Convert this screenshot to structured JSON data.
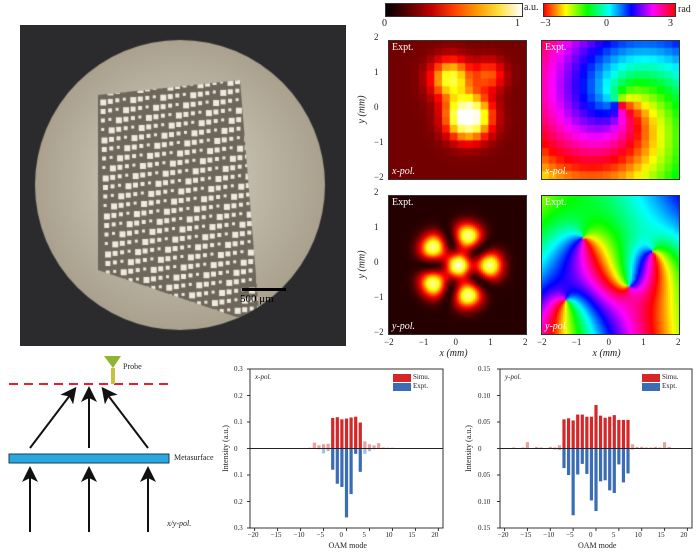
{
  "photo": {
    "scale_bar_label": "500 μm"
  },
  "colorbars": {
    "intensity": {
      "unit": "a.u.",
      "min": "0",
      "max": "1"
    },
    "phase": {
      "unit": "rad",
      "min": "−3",
      "mid": "0",
      "max": "3"
    }
  },
  "maps": {
    "panels": [
      {
        "tag": "Expt.",
        "pol": "x-pol.",
        "kind": "intensity"
      },
      {
        "tag": "Expt.",
        "pol": "x-pol.",
        "kind": "phase"
      },
      {
        "tag": "Expt.",
        "pol": "y-pol.",
        "kind": "intensity"
      },
      {
        "tag": "Expt.",
        "pol": "y-pol.",
        "kind": "phase"
      }
    ],
    "ylabel": "y (mm)",
    "xlabel": "x (mm)",
    "ticks": [
      "−2",
      "−1",
      "0",
      "1",
      "2"
    ]
  },
  "schematic": {
    "probe_label": "Probe",
    "metasurface_label": "Metasurface",
    "input_label": "x/y-pol.",
    "colors": {
      "dashed_line": "#e8202a",
      "metasurface": "#29a8e0",
      "probe": "#8db531"
    }
  },
  "chart_data": [
    {
      "type": "bar",
      "annotation": "x-pol.",
      "xlabel": "OAM mode",
      "ylabel": "Intensity (a.u.)",
      "xlim": [
        -21,
        21
      ],
      "ylim": [
        -0.3,
        0.3
      ],
      "xticks": [
        "−20",
        "−15",
        "−10",
        "−5",
        "0",
        "5",
        "10",
        "15",
        "20"
      ],
      "yticks": [
        "0.3",
        "0.2",
        "0.1",
        "0",
        "0.1",
        "0.2",
        "0.3"
      ],
      "legend_placement": "top-right",
      "x": [
        -20,
        -19,
        -18,
        -17,
        -16,
        -15,
        -14,
        -13,
        -12,
        -11,
        -10,
        -9,
        -8,
        -7,
        -6,
        -5,
        -4,
        -3,
        -2,
        -1,
        0,
        1,
        2,
        3,
        4,
        5,
        6,
        7,
        8,
        9,
        10,
        11,
        12,
        13,
        14,
        15,
        16,
        17,
        18,
        19,
        20
      ],
      "series": [
        {
          "name": "Simu.",
          "color": "#d62728",
          "direction": "up",
          "values": [
            0,
            0,
            0,
            0,
            0.002,
            0,
            0.002,
            0,
            0.002,
            0.002,
            0.002,
            0.002,
            0.003,
            0.022,
            0.012,
            0.016,
            0.018,
            0.115,
            0.118,
            0.11,
            0.113,
            0.117,
            0.12,
            0.098,
            0.027,
            0.016,
            0.012,
            0.02,
            0.004,
            0.003,
            0.003,
            0.002,
            0.002,
            0.002,
            0,
            0.002,
            0.002,
            0,
            0,
            0,
            0
          ]
        },
        {
          "name": "Expt.",
          "color": "#3a6db5",
          "direction": "down",
          "values": [
            0,
            0,
            0,
            0,
            0,
            0,
            0,
            0,
            0,
            0,
            0,
            0,
            0,
            0,
            0.003,
            0.018,
            0.01,
            0.08,
            0.133,
            0.145,
            0.26,
            0.172,
            0.02,
            0.088,
            0.02,
            0.01,
            0.003,
            0,
            0,
            0,
            0,
            0,
            0,
            0,
            0,
            0,
            0,
            0,
            0,
            0,
            0
          ]
        }
      ]
    },
    {
      "type": "bar",
      "annotation": "y-pol.",
      "xlabel": "OAM mode",
      "ylabel": "Intensity (a.u.)",
      "xlim": [
        -21,
        21
      ],
      "ylim": [
        -0.15,
        0.15
      ],
      "xticks": [
        "−20",
        "−15",
        "−10",
        "−5",
        "0",
        "5",
        "10",
        "15",
        "20"
      ],
      "yticks": [
        "0.15",
        "0.10",
        "0.05",
        "0",
        "0.05",
        "0.10",
        "0.15"
      ],
      "legend_placement": "top-right",
      "x": [
        -20,
        -19,
        -18,
        -17,
        -16,
        -15,
        -14,
        -13,
        -12,
        -11,
        -10,
        -9,
        -8,
        -7,
        -6,
        -5,
        -4,
        -3,
        -2,
        -1,
        0,
        1,
        2,
        3,
        4,
        5,
        6,
        7,
        8,
        9,
        10,
        11,
        12,
        13,
        14,
        15,
        16,
        17,
        18,
        19,
        20
      ],
      "series": [
        {
          "name": "Simu.",
          "color": "#d62728",
          "direction": "up",
          "values": [
            0,
            0,
            0.002,
            0.001,
            0.002,
            0.012,
            0.001,
            0.003,
            0.002,
            0.001,
            0.003,
            0.002,
            0.006,
            0.055,
            0.057,
            0.053,
            0.064,
            0.064,
            0.06,
            0.06,
            0.082,
            0.062,
            0.058,
            0.06,
            0.063,
            0.054,
            0.054,
            0.054,
            0.008,
            0.003,
            0.003,
            0.002,
            0.002,
            0.003,
            0.002,
            0.012,
            0.003,
            0.001,
            0.001,
            0.001,
            0
          ]
        },
        {
          "name": "Expt.",
          "color": "#3a6db5",
          "direction": "down",
          "values": [
            0,
            0,
            0,
            0,
            0,
            0,
            0,
            0,
            0,
            0,
            0,
            0.002,
            0.003,
            0.037,
            0.05,
            0.126,
            0.049,
            0.029,
            0.048,
            0.098,
            0.118,
            0.062,
            0.06,
            0.079,
            0.084,
            0.03,
            0.064,
            0.047,
            0.002,
            0,
            0,
            0,
            0,
            0,
            0,
            0,
            0,
            0,
            0,
            0,
            0
          ]
        }
      ]
    }
  ]
}
